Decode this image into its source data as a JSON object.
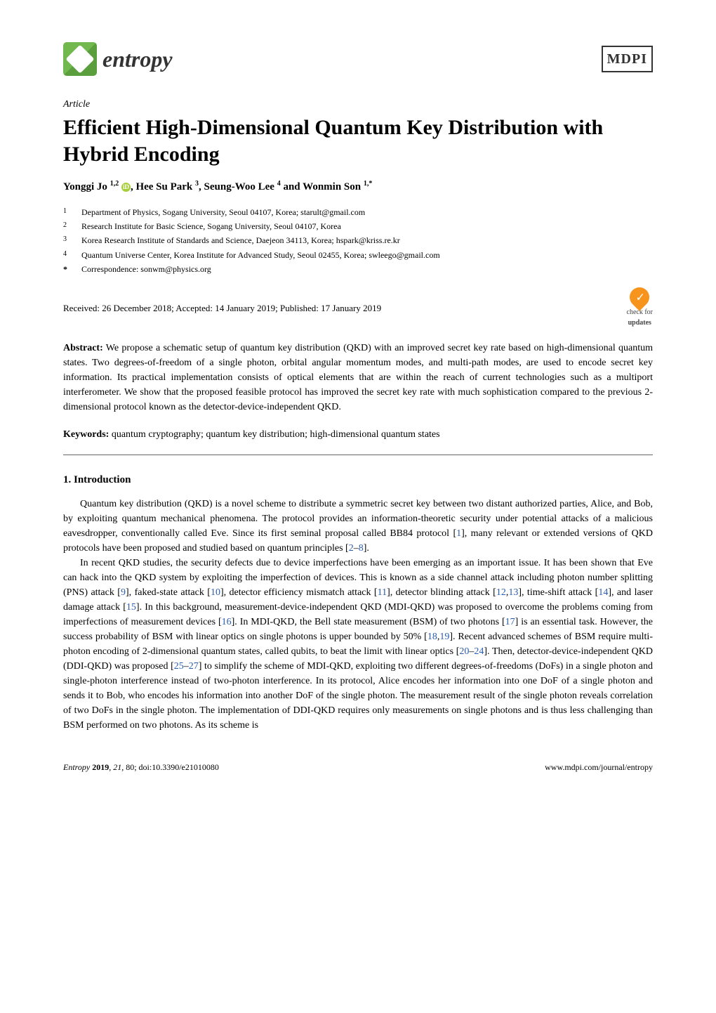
{
  "header": {
    "journal": "entropy",
    "publisher": "MDPI"
  },
  "article_type": "Article",
  "title": "Efficient High-Dimensional Quantum Key Distribution with Hybrid Encoding",
  "authors_line": "Yonggi Jo 1,2 , Hee Su Park 3, Seung-Woo Lee 4 and Wonmin Son 1,*",
  "authors": [
    {
      "name": "Yonggi Jo",
      "sup": "1,2",
      "orcid": true
    },
    {
      "name": "Hee Su Park",
      "sup": "3",
      "orcid": false
    },
    {
      "name": "Seung-Woo Lee",
      "sup": "4",
      "orcid": false
    },
    {
      "name": "Wonmin Son",
      "sup": "1,*",
      "orcid": false
    }
  ],
  "affiliations": [
    {
      "num": "1",
      "text": "Department of Physics, Sogang University, Seoul 04107, Korea; starult@gmail.com"
    },
    {
      "num": "2",
      "text": "Research Institute for Basic Science, Sogang University, Seoul 04107, Korea"
    },
    {
      "num": "3",
      "text": "Korea Research Institute of Standards and Science, Daejeon 34113, Korea; hspark@kriss.re.kr"
    },
    {
      "num": "4",
      "text": "Quantum Universe Center, Korea Institute for Advanced Study, Seoul 02455, Korea; swleego@gmail.com"
    },
    {
      "num": "*",
      "text": "Correspondence: sonwm@physics.org"
    }
  ],
  "dates": "Received: 26 December 2018; Accepted: 14 January 2019; Published: 17 January 2019",
  "check_updates": {
    "line1": "check for",
    "line2": "updates"
  },
  "abstract": {
    "label": "Abstract:",
    "text": "We propose a schematic setup of quantum key distribution (QKD) with an improved secret key rate based on high-dimensional quantum states. Two degrees-of-freedom of a single photon, orbital angular momentum modes, and multi-path modes, are used to encode secret key information. Its practical implementation consists of optical elements that are within the reach of current technologies such as a multiport interferometer. We show that the proposed feasible protocol has improved the secret key rate with much sophistication compared to the previous 2-dimensional protocol known as the detector-device-independent QKD."
  },
  "keywords": {
    "label": "Keywords:",
    "text": "quantum cryptography; quantum key distribution; high-dimensional quantum states"
  },
  "section1": {
    "heading": "1. Introduction",
    "p1_a": "Quantum key distribution (QKD) is a novel scheme to distribute a symmetric secret key between two distant authorized parties, Alice, and Bob, by exploiting quantum mechanical phenomena. The protocol provides an information-theoretic security under potential attacks of a malicious eavesdropper, conventionally called Eve. Since its first seminal proposal called BB84 protocol [",
    "p1_r1": "1",
    "p1_b": "], many relevant or extended versions of QKD protocols have been proposed and studied based on quantum principles [",
    "p1_r2": "2",
    "p1_dash1": "–",
    "p1_r3": "8",
    "p1_c": "].",
    "p2_a": "In recent QKD studies, the security defects due to device imperfections have been emerging as an important issue. It has been shown that Eve can hack into the QKD system by exploiting the imperfection of devices. This is known as a side channel attack including photon number splitting (PNS) attack [",
    "p2_r1": "9",
    "p2_b": "], faked-state attack [",
    "p2_r2": "10",
    "p2_c": "], detector efficiency mismatch attack [",
    "p2_r3": "11",
    "p2_d": "], detector blinding attack [",
    "p2_r4": "12",
    "p2_comma1": ",",
    "p2_r5": "13",
    "p2_e": "], time-shift attack [",
    "p2_r6": "14",
    "p2_f": "], and laser damage attack [",
    "p2_r7": "15",
    "p2_g": "]. In this background, measurement-device-independent QKD (MDI-QKD) was proposed to overcome the problems coming from imperfections of measurement devices [",
    "p2_r8": "16",
    "p2_h": "]. In MDI-QKD, the Bell state measurement (BSM) of two photons [",
    "p2_r9": "17",
    "p2_i": "] is an essential task. However, the success probability of BSM with linear optics on single photons is upper bounded by 50% [",
    "p2_r10": "18",
    "p2_comma2": ",",
    "p2_r11": "19",
    "p2_j": "]. Recent advanced schemes of BSM require multi-photon encoding of 2-dimensional quantum states, called qubits, to beat the limit with linear optics [",
    "p2_r12": "20",
    "p2_dash1": "–",
    "p2_r13": "24",
    "p2_k": "]. Then, detector-device-independent QKD (DDI-QKD) was proposed [",
    "p2_r14": "25",
    "p2_dash2": "–",
    "p2_r15": "27",
    "p2_l": "] to simplify the scheme of MDI-QKD, exploiting two different degrees-of-freedoms (DoFs) in a single photon and single-photon interference instead of two-photon interference. In its protocol, Alice encodes her information into one DoF of a single photon and sends it to Bob, who encodes his information into another DoF of the single photon. The measurement result of the single photon reveals correlation of two DoFs in the single photon. The implementation of DDI-QKD requires only measurements on single photons and is thus less challenging than BSM performed on two photons. As its scheme is"
  },
  "footer": {
    "left_a": "Entropy ",
    "left_b": "2019",
    "left_c": ", ",
    "left_d": "21",
    "left_e": ", 80; doi:10.3390/e21010080",
    "right": "www.mdpi.com/journal/entropy"
  }
}
